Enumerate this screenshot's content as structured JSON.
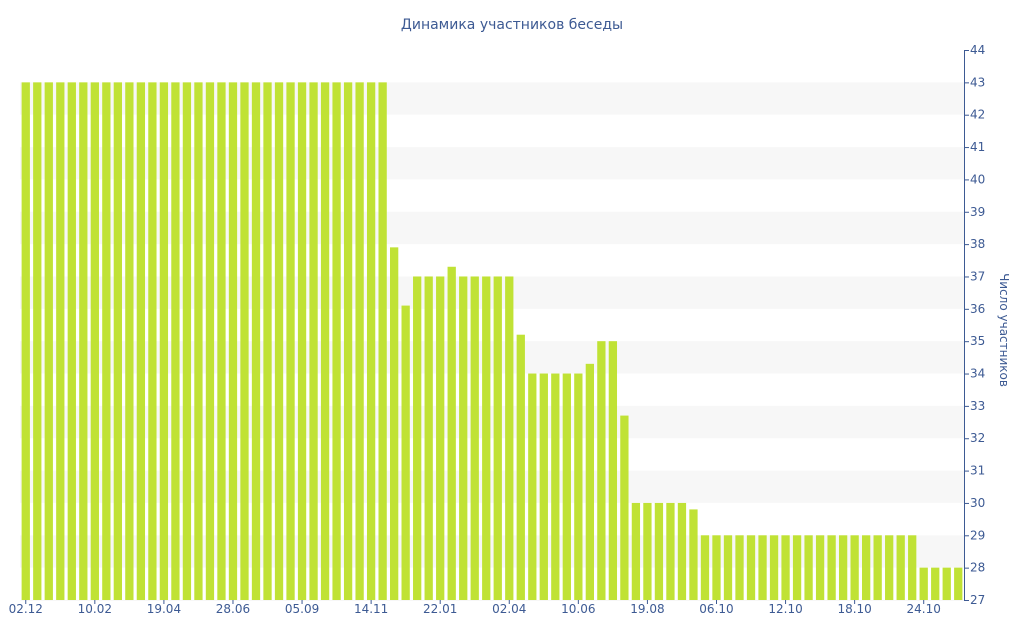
{
  "chart_data": {
    "type": "bar",
    "title": "Динамика участников беседы",
    "xlabel": "",
    "ylabel": "Число участников",
    "ylim": [
      27,
      44
    ],
    "y_ticks": [
      27,
      28,
      29,
      30,
      31,
      32,
      33,
      34,
      35,
      36,
      37,
      38,
      39,
      40,
      41,
      42,
      43,
      44
    ],
    "y_axis_side": "right",
    "grid": "horizontal bands",
    "bar_color": "#c0e235",
    "band_color": "#f7f7f7",
    "text_color": "#3d5a93",
    "x_tick_labels": [
      {
        "label": "02.12",
        "index": 0
      },
      {
        "label": "10.02",
        "index": 6
      },
      {
        "label": "19.04",
        "index": 12
      },
      {
        "label": "28.06",
        "index": 18
      },
      {
        "label": "05.09",
        "index": 24
      },
      {
        "label": "14.11",
        "index": 30
      },
      {
        "label": "22.01",
        "index": 36
      },
      {
        "label": "02.04",
        "index": 42
      },
      {
        "label": "10.06",
        "index": 48
      },
      {
        "label": "19.08",
        "index": 54
      },
      {
        "label": "06.10",
        "index": 60
      },
      {
        "label": "12.10",
        "index": 66
      },
      {
        "label": "18.10",
        "index": 72
      },
      {
        "label": "24.10",
        "index": 78
      }
    ],
    "values": [
      43,
      43,
      43,
      43,
      43,
      43,
      43,
      43,
      43,
      43,
      43,
      43,
      43,
      43,
      43,
      43,
      43,
      43,
      43,
      43,
      43,
      43,
      43,
      43,
      43,
      43,
      43,
      43,
      43,
      43,
      43,
      43,
      37.9,
      36.1,
      37,
      37,
      37,
      37.3,
      37,
      37,
      37,
      37,
      37,
      35.2,
      34,
      34,
      34,
      34,
      34,
      34.3,
      35,
      35,
      32.7,
      30,
      30,
      30,
      30,
      30,
      29.8,
      29,
      29,
      29,
      29,
      29,
      29,
      29,
      29,
      29,
      29,
      29,
      29,
      29,
      29,
      29,
      29,
      29,
      29,
      29,
      28,
      28,
      28,
      28
    ]
  }
}
